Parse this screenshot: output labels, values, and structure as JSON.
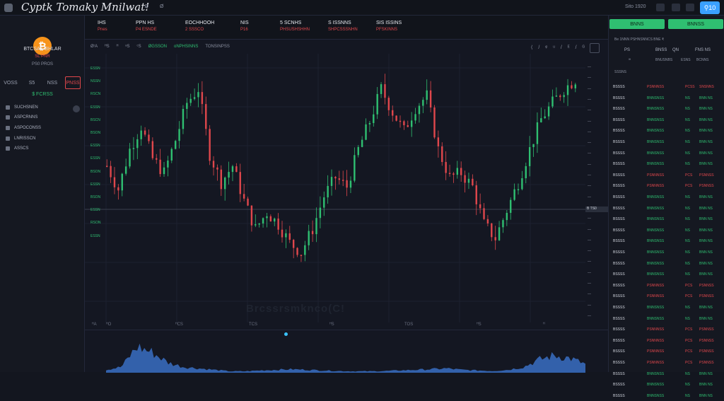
{
  "app": {
    "title": "Cyptk Tomaky Mnilwat!",
    "top_info": [
      "·  ·  Ø",
      "Ø"
    ]
  },
  "topbar": {
    "right_text": "Sito 1920",
    "search_label": "⚲10"
  },
  "sidebar": {
    "coin_symbol": "₿",
    "pair": "BTCSAS BHLAR",
    "change": "SL PNR",
    "volume": "PS0  PROS",
    "timeframes": [
      {
        "label": "VOSS",
        "active": false
      },
      {
        "label": "S5",
        "active": false
      },
      {
        "label": "NSS",
        "active": false
      },
      {
        "label": "PNSS",
        "active": true
      }
    ],
    "price": "$ FCRSS",
    "items": [
      {
        "label": "SUCHSNEN",
        "icon": "chart-icon"
      },
      {
        "label": "ASPCRNNS",
        "icon": "layers-icon"
      },
      {
        "label": "ASPOCONSS",
        "icon": "trade-icon"
      },
      {
        "label": "LNRISSCN",
        "icon": "grid-icon"
      },
      {
        "label": "ASSCS",
        "icon": "gear-icon"
      }
    ]
  },
  "stats": [
    {
      "label": "IHS",
      "value": "Pnes"
    },
    {
      "label": "PPN HS",
      "value": "P4 ESNDE"
    },
    {
      "label": "EOCHHOOH",
      "value": "2 SSSCO"
    },
    {
      "label": "NIS",
      "value": "P16"
    },
    {
      "label": "5 SCNHS",
      "value": "PHSUSHSHHN"
    },
    {
      "label": "S ISSNNS",
      "value": "SHPCSSSNHN"
    },
    {
      "label": "SIS ISSINS",
      "value": "PFSKINNS"
    }
  ],
  "chart": {
    "toolbar": [
      "ØʳA",
      "ᴴS",
      "ᴴ",
      "ᵃS",
      "ᶜS"
    ],
    "toolbar_green": [
      "ØGSSON",
      "oNPHSINNS"
    ],
    "toolbar_last": "TONSINPSS",
    "tools": "⟨ / ᵠ ᵘ / ᴱ / ᴳ",
    "watermark": "Brcssrsmknco(C!",
    "time_labels": [
      "ᴴA",
      "ᴴO",
      "ᴴCS",
      "TCS",
      "ᴴS",
      "TOS",
      "ᴴS",
      "ᴴ"
    ],
    "price_marker": "B TS0",
    "left_labels": [
      "ESSN",
      "NSSN",
      "RSCN",
      "ESSN",
      "BSCN",
      "BSON",
      "ESSN",
      "ESSN",
      "BSON",
      "ESSN",
      "BSON",
      "ESSN",
      "RSON",
      "ESSN"
    ]
  },
  "chart_data": {
    "type": "candlestick",
    "candle_count": 124,
    "trend_profile": [
      0.55,
      0.45,
      0.62,
      0.72,
      0.58,
      0.52,
      0.66,
      0.82,
      0.88,
      0.6,
      0.48,
      0.55,
      0.4,
      0.28,
      0.35,
      0.3,
      0.22,
      0.18,
      0.28,
      0.42,
      0.5,
      0.46,
      0.62,
      0.74,
      0.88,
      0.78,
      0.7,
      0.8,
      0.85,
      0.62,
      0.5,
      0.52,
      0.46,
      0.3,
      0.24,
      0.36,
      0.48,
      0.62,
      0.75,
      0.82,
      0.88,
      0.92
    ],
    "volume_profile": [
      0.1,
      0.2,
      0.9,
      0.7,
      0.35,
      0.2,
      0.15,
      0.1,
      0.05,
      0.05,
      0.08,
      0.1,
      0.12,
      0.1,
      0.08,
      0.06,
      0.05,
      0.05,
      0.06,
      0.08,
      0.1,
      0.12,
      0.15,
      0.1,
      0.08,
      0.06,
      0.1,
      0.2,
      0.45,
      0.6,
      0.5,
      0.3
    ],
    "up_color": "#2fbf71",
    "down_color": "#e0474c",
    "volume_color": "#3d7bd9"
  },
  "panel": {
    "buy": "BNNS",
    "sell": "BNNSS",
    "info": "Be 1NNN PSHNSNNCS  BNE  ₹",
    "headers": [
      "PS",
      "BNSS",
      "QN",
      "FNS NS"
    ],
    "subheaders": [
      "ᴵᴴ",
      "BNUSNBS",
      "ESNS",
      "BCNNS"
    ],
    "section": "SSSNS",
    "rows": [
      {
        "c1": "BSSSS",
        "c2": "PSNNNSS",
        "c3": "PCSS",
        "c4": "SNSNNS",
        "color": "red"
      },
      {
        "c1": "BSSSS",
        "c2": "BNNSNSS",
        "c3": "NS",
        "c4": "BNN NS",
        "color": "green"
      },
      {
        "c1": "BSSSS",
        "c2": "BNNSNSS",
        "c3": "NS",
        "c4": "BNN NS",
        "color": "green"
      },
      {
        "c1": "BSSSS",
        "c2": "BNNSNSS",
        "c3": "NS",
        "c4": "BNN NS",
        "color": "green"
      },
      {
        "c1": "BSSSS",
        "c2": "BNNSNSS",
        "c3": "NS",
        "c4": "BNN NS",
        "color": "green"
      },
      {
        "c1": "BSSSS",
        "c2": "BNNSNSS",
        "c3": "NS",
        "c4": "BNN NS",
        "color": "green"
      },
      {
        "c1": "BSSSS",
        "c2": "BNNSNSS",
        "c3": "NS",
        "c4": "BNN NS",
        "color": "green"
      },
      {
        "c1": "BSSSS",
        "c2": "BNNSNSS",
        "c3": "NS",
        "c4": "BNN NS",
        "color": "green"
      },
      {
        "c1": "BSSSS",
        "c2": "PSNNNSS",
        "c3": "PCS",
        "c4": "PSNNSS",
        "color": "red"
      },
      {
        "c1": "BSSSS",
        "c2": "PSNNNSS",
        "c3": "PCS",
        "c4": "PSNNSS",
        "color": "red"
      },
      {
        "c1": "BSSSS",
        "c2": "BNNSNSS",
        "c3": "NS",
        "c4": "BNN NS",
        "color": "green"
      },
      {
        "c1": "BSSSS",
        "c2": "BNNSNSS",
        "c3": "NS",
        "c4": "BNN NS",
        "color": "green"
      },
      {
        "c1": "BSSSS",
        "c2": "BNNSNSS",
        "c3": "NS",
        "c4": "BNN NS",
        "color": "green"
      },
      {
        "c1": "BSSSS",
        "c2": "BNNSNSS",
        "c3": "NS",
        "c4": "BNN NS",
        "color": "green"
      },
      {
        "c1": "BSSSS",
        "c2": "BNNSNSS",
        "c3": "NS",
        "c4": "BNN NS",
        "color": "green"
      },
      {
        "c1": "BSSSS",
        "c2": "BNNSNSS",
        "c3": "NS",
        "c4": "BNN NS",
        "color": "green"
      },
      {
        "c1": "BSSSS",
        "c2": "BNNSNSS",
        "c3": "NS",
        "c4": "BNN NS",
        "color": "green"
      },
      {
        "c1": "BSSSS",
        "c2": "BNNSNSS",
        "c3": "NS",
        "c4": "BNN NS",
        "color": "green"
      },
      {
        "c1": "BSSSS",
        "c2": "PSNNNSS",
        "c3": "PCS",
        "c4": "PSNNSS",
        "color": "red"
      },
      {
        "c1": "BSSSS",
        "c2": "PSNNNSS",
        "c3": "PCS",
        "c4": "PSNNSS",
        "color": "red"
      },
      {
        "c1": "BSSSS",
        "c2": "BNNSNSS",
        "c3": "NS",
        "c4": "BNN NS",
        "color": "green"
      },
      {
        "c1": "BSSSS",
        "c2": "BNNSNSS",
        "c3": "NS",
        "c4": "BNN NS",
        "color": "green"
      },
      {
        "c1": "BSSSS",
        "c2": "PSNNNSS",
        "c3": "PCS",
        "c4": "PSNNSS",
        "color": "red"
      },
      {
        "c1": "BSSSS",
        "c2": "PSNNNSS",
        "c3": "PCS",
        "c4": "PSNNSS",
        "color": "red"
      },
      {
        "c1": "BSSSS",
        "c2": "PSNNNSS",
        "c3": "PCS",
        "c4": "PSNNSS",
        "color": "red"
      },
      {
        "c1": "BSSSS",
        "c2": "PSNNNSS",
        "c3": "PCS",
        "c4": "PSNNSS",
        "color": "red"
      },
      {
        "c1": "BSSSS",
        "c2": "BNNSNSS",
        "c3": "NS",
        "c4": "BNN NS",
        "color": "green"
      },
      {
        "c1": "BSSSS",
        "c2": "BNNSNSS",
        "c3": "NS",
        "c4": "BNN NS",
        "color": "green"
      },
      {
        "c1": "BSSSS",
        "c2": "BNNSNSS",
        "c3": "NS",
        "c4": "BNN NS",
        "color": "green"
      }
    ]
  }
}
